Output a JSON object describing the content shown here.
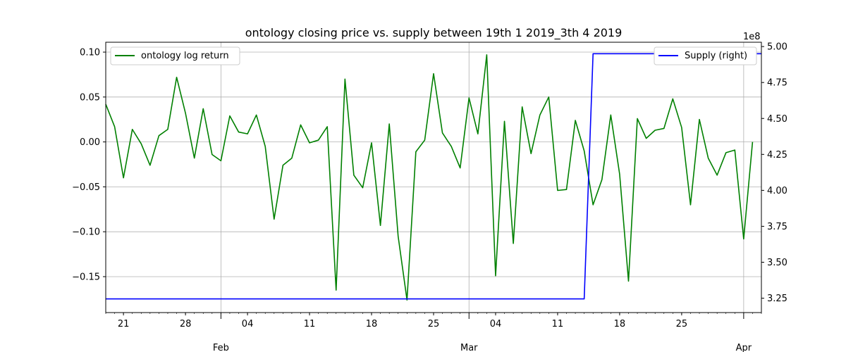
{
  "chart_data": {
    "type": "line",
    "title": "ontology closing price vs. supply between 19th 1 2019_3th 4 2019",
    "x_start": "2019-01-19",
    "x_end": "2019-04-03",
    "x_ticks_minor": [
      {
        "date": "2019-01-21",
        "label": "21"
      },
      {
        "date": "2019-01-28",
        "label": "28"
      },
      {
        "date": "2019-02-04",
        "label": "04"
      },
      {
        "date": "2019-02-11",
        "label": "11"
      },
      {
        "date": "2019-02-18",
        "label": "18"
      },
      {
        "date": "2019-02-25",
        "label": "25"
      },
      {
        "date": "2019-03-04",
        "label": "04"
      },
      {
        "date": "2019-03-11",
        "label": "11"
      },
      {
        "date": "2019-03-18",
        "label": "18"
      },
      {
        "date": "2019-03-25",
        "label": "25"
      }
    ],
    "x_ticks_major": [
      {
        "date": "2019-02-01",
        "label": "Feb"
      },
      {
        "date": "2019-03-01",
        "label": "Mar"
      },
      {
        "date": "2019-04-01",
        "label": "Apr"
      }
    ],
    "left_axis": {
      "ylim": [
        -0.19,
        0.111
      ],
      "ticks": [
        -0.15,
        -0.1,
        -0.05,
        0.0,
        0.05,
        0.1
      ],
      "tick_labels": [
        "−0.15",
        "−0.10",
        "−0.05",
        "0.00",
        "0.05",
        "0.10"
      ]
    },
    "right_axis": {
      "ylim": [
        3.15,
        5.03
      ],
      "ticks": [
        3.25,
        3.5,
        3.75,
        4.0,
        4.25,
        4.5,
        4.75,
        5.0
      ],
      "tick_labels": [
        "3.25",
        "3.50",
        "3.75",
        "4.00",
        "4.25",
        "4.50",
        "4.75",
        "5.00"
      ],
      "offset_label": "1e8"
    },
    "grid": true,
    "series": [
      {
        "name": "ontology log return",
        "axis": "left",
        "color": "#008000",
        "values": [
          0.042,
          0.017,
          -0.04,
          0.014,
          -0.002,
          -0.026,
          0.007,
          0.014,
          0.072,
          0.032,
          -0.018,
          0.037,
          -0.014,
          -0.021,
          0.029,
          0.011,
          0.009,
          0.03,
          -0.005,
          -0.086,
          -0.026,
          -0.018,
          0.019,
          -0.001,
          0.002,
          0.017,
          -0.165,
          0.07,
          -0.037,
          -0.051,
          -0.001,
          -0.093,
          0.02,
          -0.105,
          -0.176,
          -0.011,
          0.002,
          0.076,
          0.01,
          -0.005,
          -0.029,
          0.049,
          0.009,
          0.097,
          -0.149,
          0.023,
          -0.113,
          0.039,
          -0.013,
          0.03,
          0.05,
          -0.054,
          -0.053,
          0.024,
          -0.01,
          -0.07,
          -0.042,
          0.03,
          -0.036,
          -0.155,
          0.026,
          0.004,
          0.013,
          0.015,
          0.048,
          0.016,
          -0.07,
          0.025,
          -0.018,
          -0.037,
          -0.012,
          -0.009,
          -0.108,
          0.0
        ]
      },
      {
        "name": "Supply (right)",
        "axis": "right",
        "color": "#0000ff",
        "points": [
          {
            "x": "2019-01-19",
            "y": 3.245
          },
          {
            "x": "2019-03-14",
            "y": 3.245
          },
          {
            "x": "2019-03-15",
            "y": 4.95
          },
          {
            "x": "2019-04-03",
            "y": 4.95
          }
        ]
      }
    ],
    "legends": [
      {
        "placement": "upper-left",
        "label": "ontology log return",
        "color": "#008000"
      },
      {
        "placement": "upper-right",
        "label": "Supply (right)",
        "color": "#0000ff"
      }
    ]
  }
}
